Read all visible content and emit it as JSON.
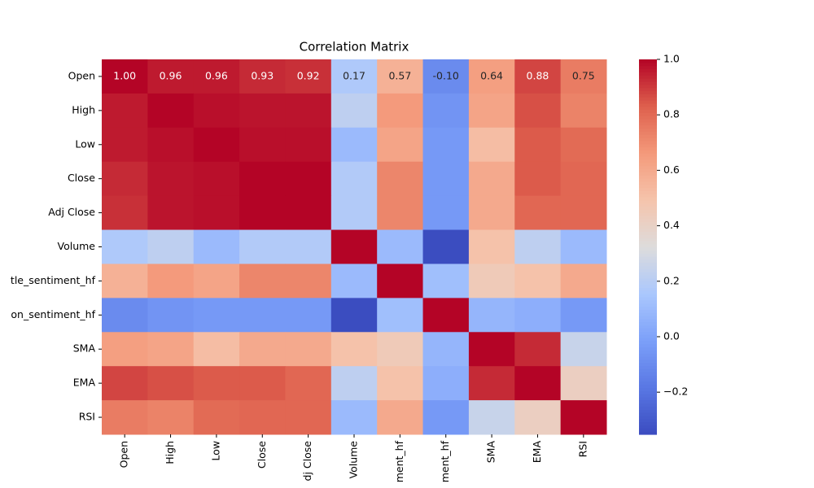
{
  "chart_data": {
    "type": "heatmap",
    "title": "Correlation Matrix",
    "row_labels": [
      "Open",
      "High",
      "Low",
      "Close",
      "Adj Close",
      "Volume",
      "tle_sentiment_hf",
      "on_sentiment_hf",
      "SMA",
      "EMA",
      "RSI"
    ],
    "col_labels": [
      "Open",
      "High",
      "Low",
      "Close",
      "dj Close",
      "Volume",
      "ment_hf",
      "ment_hf",
      "SMA",
      "EMA",
      "RSI"
    ],
    "values": [
      [
        1.0,
        0.96,
        0.96,
        0.93,
        0.92,
        0.17,
        0.57,
        -0.1,
        0.64,
        0.88,
        0.75
      ],
      [
        0.96,
        1.0,
        0.98,
        0.97,
        0.97,
        0.22,
        0.66,
        -0.06,
        0.62,
        0.86,
        0.73
      ],
      [
        0.96,
        0.98,
        1.0,
        0.98,
        0.98,
        0.1,
        0.62,
        -0.04,
        0.52,
        0.84,
        0.8
      ],
      [
        0.93,
        0.97,
        0.98,
        1.0,
        1.0,
        0.18,
        0.72,
        -0.04,
        0.6,
        0.84,
        0.81
      ],
      [
        0.92,
        0.97,
        0.98,
        1.0,
        1.0,
        0.18,
        0.72,
        -0.04,
        0.6,
        0.81,
        0.81
      ],
      [
        0.17,
        0.22,
        0.1,
        0.18,
        0.18,
        1.0,
        0.1,
        -0.35,
        0.5,
        0.22,
        0.1
      ],
      [
        0.57,
        0.66,
        0.62,
        0.72,
        0.72,
        0.1,
        1.0,
        0.12,
        0.45,
        0.5,
        0.6
      ],
      [
        -0.1,
        -0.06,
        -0.04,
        -0.04,
        -0.04,
        -0.35,
        0.12,
        1.0,
        0.08,
        0.05,
        -0.04
      ],
      [
        0.64,
        0.62,
        0.52,
        0.6,
        0.6,
        0.5,
        0.45,
        0.08,
        1.0,
        0.93,
        0.25
      ],
      [
        0.88,
        0.86,
        0.84,
        0.84,
        0.81,
        0.22,
        0.5,
        0.05,
        0.93,
        1.0,
        0.42
      ],
      [
        0.75,
        0.73,
        0.8,
        0.81,
        0.81,
        0.1,
        0.6,
        -0.04,
        0.25,
        0.42,
        1.0
      ]
    ],
    "value_labels": [
      [
        "1.00",
        "0.96",
        "0.96",
        "0.93",
        "0.92",
        "0.17",
        "0.57",
        "-0.10",
        "0.64",
        "0.88",
        "0.75"
      ]
    ],
    "colormap": "coolwarm",
    "clim": [
      -0.352,
      1.0
    ],
    "cticks": [
      {
        "value": -0.2,
        "label": "−0.2"
      },
      {
        "value": 0,
        "label": "0.0"
      },
      {
        "value": 0.2,
        "label": "0.2"
      },
      {
        "value": 0.4,
        "label": "0.4"
      },
      {
        "value": 0.6,
        "label": "0.6"
      },
      {
        "value": 0.8,
        "label": "0.8"
      },
      {
        "value": 1.0,
        "label": "1.0"
      }
    ]
  }
}
